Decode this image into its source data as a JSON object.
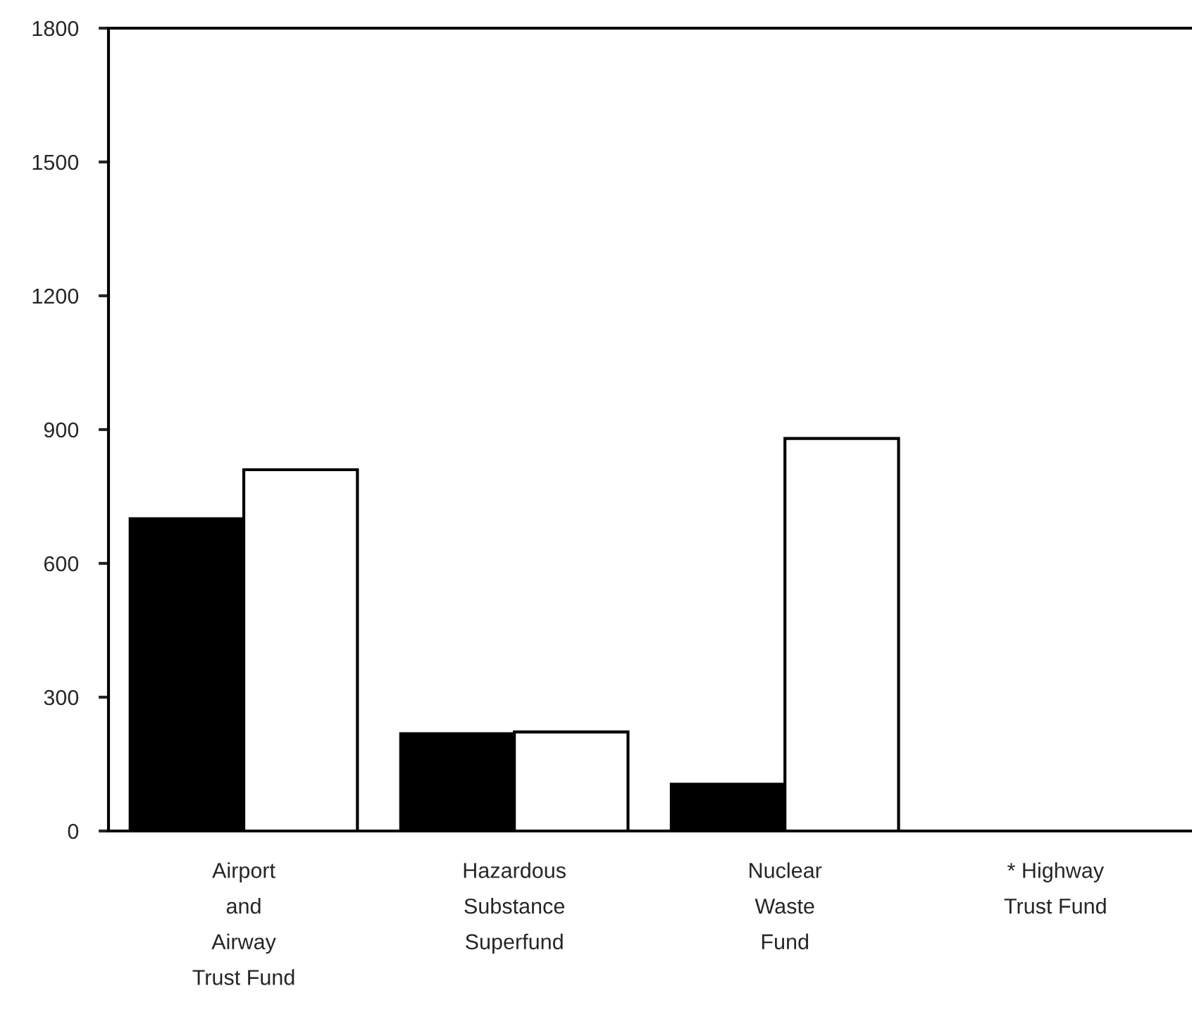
{
  "chart_data": {
    "type": "bar",
    "categories": [
      "Airport\nand\nAirway\nTrust Fund",
      "Hazardous\nSubstance\nSuperfund",
      "Nuclear\nWaste\nFund",
      "* Highway\nTrust Fund"
    ],
    "series": [
      {
        "color": "#000000",
        "values": [
          700,
          218,
          105,
          null
        ]
      },
      {
        "color": "#ffffff",
        "values": [
          810,
          222,
          880,
          null
        ]
      }
    ],
    "ylim": [
      0,
      1800
    ],
    "yticks": [
      0,
      300,
      600,
      900,
      1200,
      1500,
      1800
    ]
  }
}
